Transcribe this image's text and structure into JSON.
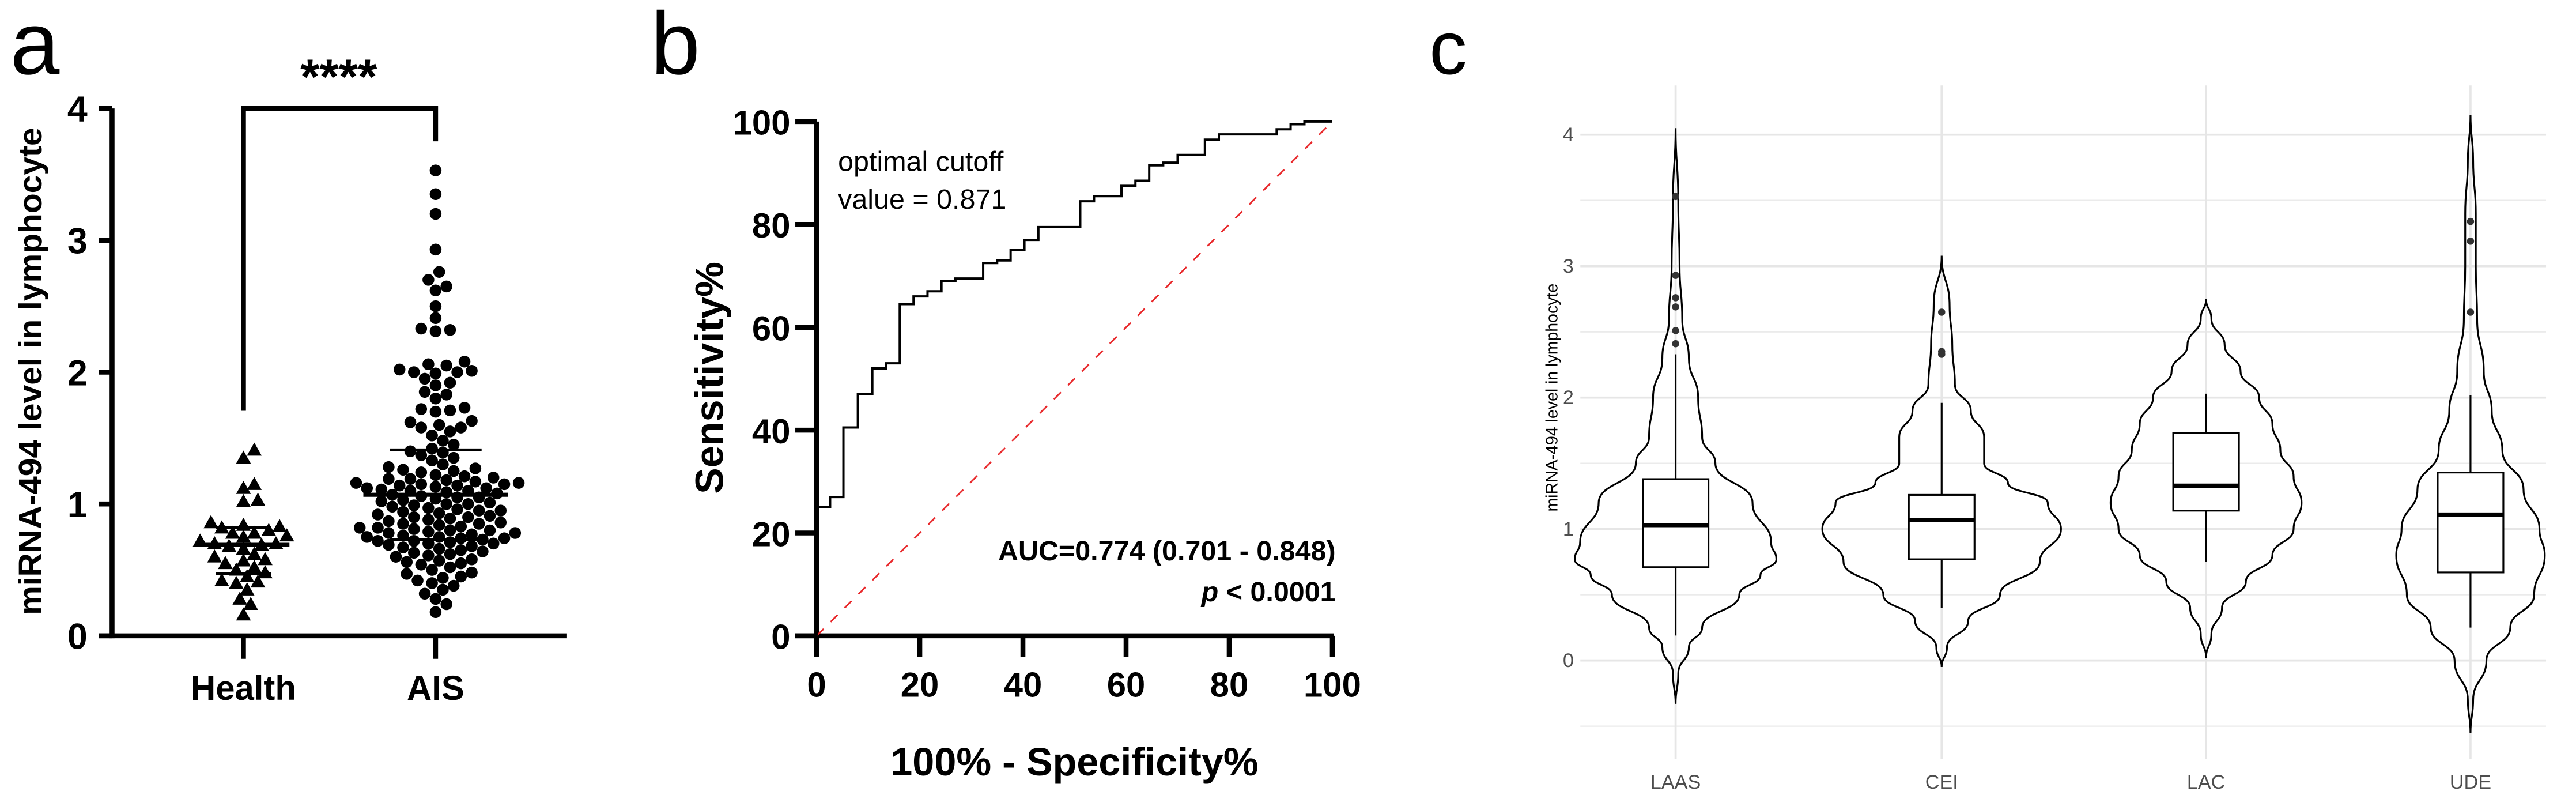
{
  "panel_labels": {
    "a": "a",
    "b": "b",
    "c": "c"
  },
  "chart_data": [
    {
      "type": "scatter",
      "panel": "a",
      "ylabel": "miRNA-494 level in lymphocyte",
      "xlabel": "",
      "categories": [
        "Health",
        "AIS"
      ],
      "ylim": [
        0,
        4
      ],
      "yticks": [
        0,
        1,
        2,
        3,
        4
      ],
      "significance": "****",
      "series": [
        {
          "category": "Health",
          "marker": "triangle",
          "mean": 0.69,
          "sd_upper": 0.82,
          "sd_lower": 0.47,
          "values": [
            1.41,
            1.35,
            1.15,
            1.12,
            1.03,
            1.02,
            0.86,
            0.84,
            0.83,
            0.82,
            0.8,
            0.78,
            0.78,
            0.76,
            0.75,
            0.72,
            0.7,
            0.7,
            0.69,
            0.68,
            0.66,
            0.62,
            0.6,
            0.58,
            0.57,
            0.55,
            0.52,
            0.5,
            0.48,
            0.45,
            0.42,
            0.41,
            0.4,
            0.35,
            0.28,
            0.24,
            0.16
          ]
        },
        {
          "category": "AIS",
          "marker": "circle",
          "mean": 1.07,
          "sd_upper": 1.41,
          "sd_lower": 0.73,
          "values": [
            3.53,
            3.35,
            3.2,
            2.93,
            2.76,
            2.7,
            2.65,
            2.62,
            2.5,
            2.41,
            2.33,
            2.32,
            2.31,
            2.08,
            2.06,
            2.05,
            2.02,
            2.01,
            2.0,
            2.0,
            1.99,
            1.95,
            1.92,
            1.9,
            1.85,
            1.83,
            1.8,
            1.73,
            1.72,
            1.71,
            1.7,
            1.63,
            1.62,
            1.6,
            1.58,
            1.58,
            1.55,
            1.52,
            1.48,
            1.45,
            1.42,
            1.4,
            1.39,
            1.37,
            1.35,
            1.33,
            1.3,
            1.28,
            1.27,
            1.26,
            1.25,
            1.24,
            1.22,
            1.21,
            1.2,
            1.19,
            1.19,
            1.18,
            1.17,
            1.16,
            1.16,
            1.15,
            1.15,
            1.14,
            1.14,
            1.13,
            1.12,
            1.12,
            1.11,
            1.1,
            1.1,
            1.09,
            1.08,
            1.07,
            1.06,
            1.05,
            1.05,
            1.04,
            1.03,
            1.02,
            1.01,
            1.0,
            1.0,
            0.99,
            0.98,
            0.97,
            0.96,
            0.95,
            0.95,
            0.94,
            0.93,
            0.92,
            0.91,
            0.9,
            0.9,
            0.89,
            0.88,
            0.87,
            0.86,
            0.85,
            0.85,
            0.84,
            0.83,
            0.82,
            0.82,
            0.81,
            0.8,
            0.8,
            0.79,
            0.78,
            0.78,
            0.77,
            0.76,
            0.75,
            0.75,
            0.74,
            0.74,
            0.73,
            0.72,
            0.72,
            0.71,
            0.7,
            0.7,
            0.69,
            0.68,
            0.67,
            0.66,
            0.65,
            0.64,
            0.63,
            0.62,
            0.61,
            0.6,
            0.58,
            0.57,
            0.56,
            0.55,
            0.54,
            0.52,
            0.5,
            0.48,
            0.47,
            0.45,
            0.44,
            0.42,
            0.4,
            0.38,
            0.35,
            0.32,
            0.28,
            0.24,
            0.18
          ]
        }
      ]
    },
    {
      "type": "line",
      "panel": "b",
      "xlabel": "100% - Specificity%",
      "ylabel": "Sensitivity%",
      "xlim": [
        0,
        100
      ],
      "ylim": [
        0,
        100
      ],
      "xticks": [
        0,
        20,
        40,
        60,
        80,
        100
      ],
      "yticks": [
        0,
        20,
        40,
        60,
        80,
        100
      ],
      "annotation_cutoff": [
        "optimal cutoff",
        "value = 0.871"
      ],
      "annotation_auc": "AUC=0.774 (0.701 - 0.848)",
      "annotation_p_symbol": "p",
      "annotation_p_value": " < 0.0001",
      "reference_line_color": "#e8282b",
      "roc": {
        "fpr": [
          0,
          0,
          2.6,
          2.6,
          5.2,
          5.2,
          8,
          8,
          10.8,
          10.8,
          13.5,
          13.5,
          16.1,
          16.1,
          18.8,
          18.8,
          21.5,
          21.5,
          24.2,
          24.2,
          26.9,
          26.9,
          32.3,
          32.3,
          35,
          35,
          37.6,
          37.6,
          40.3,
          40.3,
          43,
          43,
          51.1,
          51.1,
          53.8,
          53.8,
          59.1,
          59.1,
          61.8,
          61.8,
          64.5,
          64.5,
          67.2,
          67.2,
          70,
          70,
          75.3,
          75.3,
          78,
          78,
          89.2,
          89.2,
          91.9,
          91.9,
          94.6,
          94.6,
          100
        ],
        "tpr": [
          0,
          25,
          25,
          27,
          27,
          40.5,
          40.5,
          47,
          47,
          52,
          52,
          53,
          53,
          64.5,
          64.5,
          66,
          66,
          67,
          67,
          69,
          69,
          69.5,
          69.5,
          72.5,
          72.5,
          73,
          73,
          75,
          75,
          77,
          77,
          79.5,
          79.5,
          84.5,
          84.5,
          85.5,
          85.5,
          87.5,
          87.5,
          88.5,
          88.5,
          91.5,
          91.5,
          92,
          92,
          93.5,
          93.5,
          96.5,
          96.5,
          97.5,
          97.5,
          98.5,
          98.5,
          99.5,
          99.5,
          100,
          100
        ]
      }
    },
    {
      "type": "violin",
      "panel": "c",
      "ylabel": "miRNA-494 level in lymphocyte",
      "xlabel": "",
      "categories": [
        "LAAS",
        "CEI",
        "LAC",
        "UDE"
      ],
      "ylim": [
        -0.6,
        4.3
      ],
      "yticks": [
        0,
        1,
        2,
        3,
        4
      ],
      "grid": true,
      "groups": [
        {
          "name": "LAAS",
          "q1": 0.71,
          "median": 1.03,
          "q3": 1.38,
          "whisker_low": 0.19,
          "whisker_high": 2.33,
          "outliers": [
            3.53,
            2.93,
            2.76,
            2.69,
            2.51,
            2.41
          ],
          "density": [
            [
              -0.33,
              0
            ],
            [
              -0.1,
              0.01
            ],
            [
              0.1,
              0.05
            ],
            [
              0.25,
              0.1
            ],
            [
              0.5,
              0.24
            ],
            [
              0.65,
              0.32
            ],
            [
              0.77,
              0.38
            ],
            [
              0.9,
              0.36
            ],
            [
              1.2,
              0.29
            ],
            [
              1.5,
              0.15
            ],
            [
              1.7,
              0.1
            ],
            [
              2.0,
              0.085
            ],
            [
              2.3,
              0.05
            ],
            [
              2.6,
              0.025
            ],
            [
              3.0,
              0.015
            ],
            [
              3.5,
              0.01
            ],
            [
              4.05,
              0
            ]
          ]
        },
        {
          "name": "CEI",
          "q1": 0.77,
          "median": 1.07,
          "q3": 1.26,
          "whisker_low": 0.4,
          "whisker_high": 1.96,
          "outliers": [
            2.65,
            2.35,
            2.33
          ],
          "density": [
            [
              -0.05,
              0
            ],
            [
              0.1,
              0.02
            ],
            [
              0.3,
              0.1
            ],
            [
              0.5,
              0.22
            ],
            [
              0.75,
              0.37
            ],
            [
              1.0,
              0.45
            ],
            [
              1.2,
              0.4
            ],
            [
              1.35,
              0.25
            ],
            [
              1.5,
              0.16
            ],
            [
              1.7,
              0.16
            ],
            [
              1.9,
              0.11
            ],
            [
              2.1,
              0.05
            ],
            [
              2.4,
              0.04
            ],
            [
              2.7,
              0.03
            ],
            [
              3.08,
              0
            ]
          ]
        },
        {
          "name": "LAC",
          "q1": 1.14,
          "median": 1.33,
          "q3": 1.73,
          "whisker_low": 0.75,
          "whisker_high": 2.03,
          "outliers": [],
          "density": [
            [
              0.02,
              0
            ],
            [
              0.2,
              0.02
            ],
            [
              0.4,
              0.06
            ],
            [
              0.6,
              0.15
            ],
            [
              0.8,
              0.25
            ],
            [
              1.0,
              0.33
            ],
            [
              1.2,
              0.36
            ],
            [
              1.4,
              0.33
            ],
            [
              1.6,
              0.28
            ],
            [
              1.8,
              0.25
            ],
            [
              2.0,
              0.2
            ],
            [
              2.2,
              0.13
            ],
            [
              2.4,
              0.07
            ],
            [
              2.6,
              0.02
            ],
            [
              2.75,
              0
            ]
          ]
        },
        {
          "name": "UDE",
          "q1": 0.67,
          "median": 1.11,
          "q3": 1.43,
          "whisker_low": 0.25,
          "whisker_high": 2.02,
          "outliers": [
            3.34,
            3.19,
            2.65
          ],
          "density": [
            [
              -0.55,
              0
            ],
            [
              -0.3,
              0.01
            ],
            [
              0,
              0.06
            ],
            [
              0.25,
              0.15
            ],
            [
              0.5,
              0.24
            ],
            [
              0.8,
              0.28
            ],
            [
              1.0,
              0.26
            ],
            [
              1.3,
              0.2
            ],
            [
              1.6,
              0.12
            ],
            [
              1.9,
              0.08
            ],
            [
              2.2,
              0.05
            ],
            [
              2.6,
              0.025
            ],
            [
              3.0,
              0.02
            ],
            [
              3.4,
              0.02
            ],
            [
              3.8,
              0.01
            ],
            [
              4.15,
              0
            ]
          ]
        }
      ]
    }
  ]
}
